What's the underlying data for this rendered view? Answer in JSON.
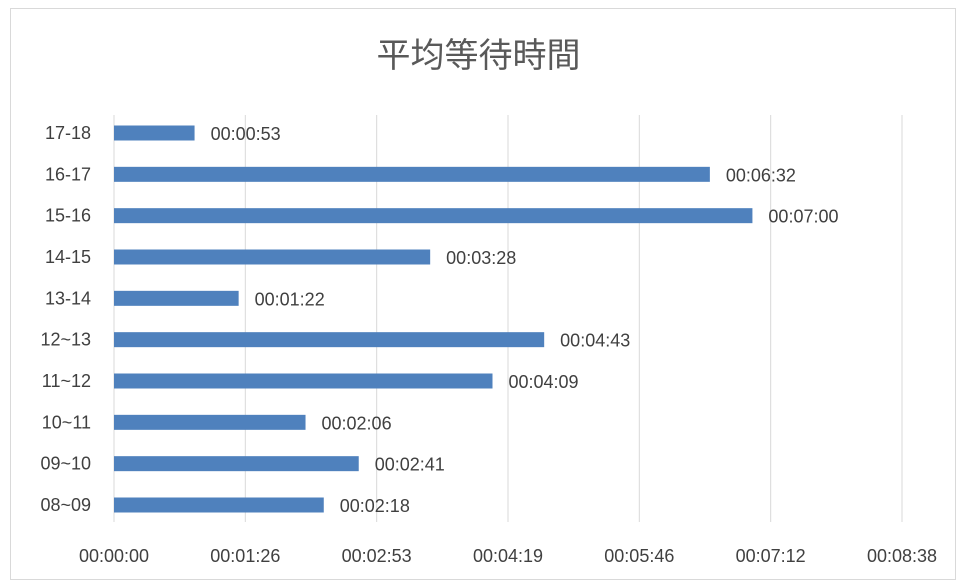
{
  "chart_data": {
    "type": "bar",
    "orientation": "horizontal",
    "title": "平均等待時間",
    "xlabel": "",
    "ylabel": "",
    "categories": [
      "08~09",
      "09~10",
      "10~11",
      "11~12",
      "12~13",
      "13-14",
      "14-15",
      "15-16",
      "16-17",
      "17-18"
    ],
    "values_seconds": [
      138,
      161,
      126,
      249,
      283,
      82,
      208,
      420,
      392,
      53
    ],
    "data_labels": [
      "00:02:18",
      "00:02:41",
      "00:02:06",
      "00:04:09",
      "00:04:43",
      "00:01:22",
      "00:03:28",
      "00:07:00",
      "00:06:32",
      "00:00:53"
    ],
    "x_ticks": [
      "00:00:00",
      "00:01:26",
      "00:02:53",
      "00:04:19",
      "00:05:46",
      "00:07:12",
      "00:08:38"
    ],
    "xlim_seconds": [
      0,
      518.4
    ],
    "grid": true,
    "bar_color": "#4f81bd",
    "gridline_color": "#d9d9d9"
  }
}
